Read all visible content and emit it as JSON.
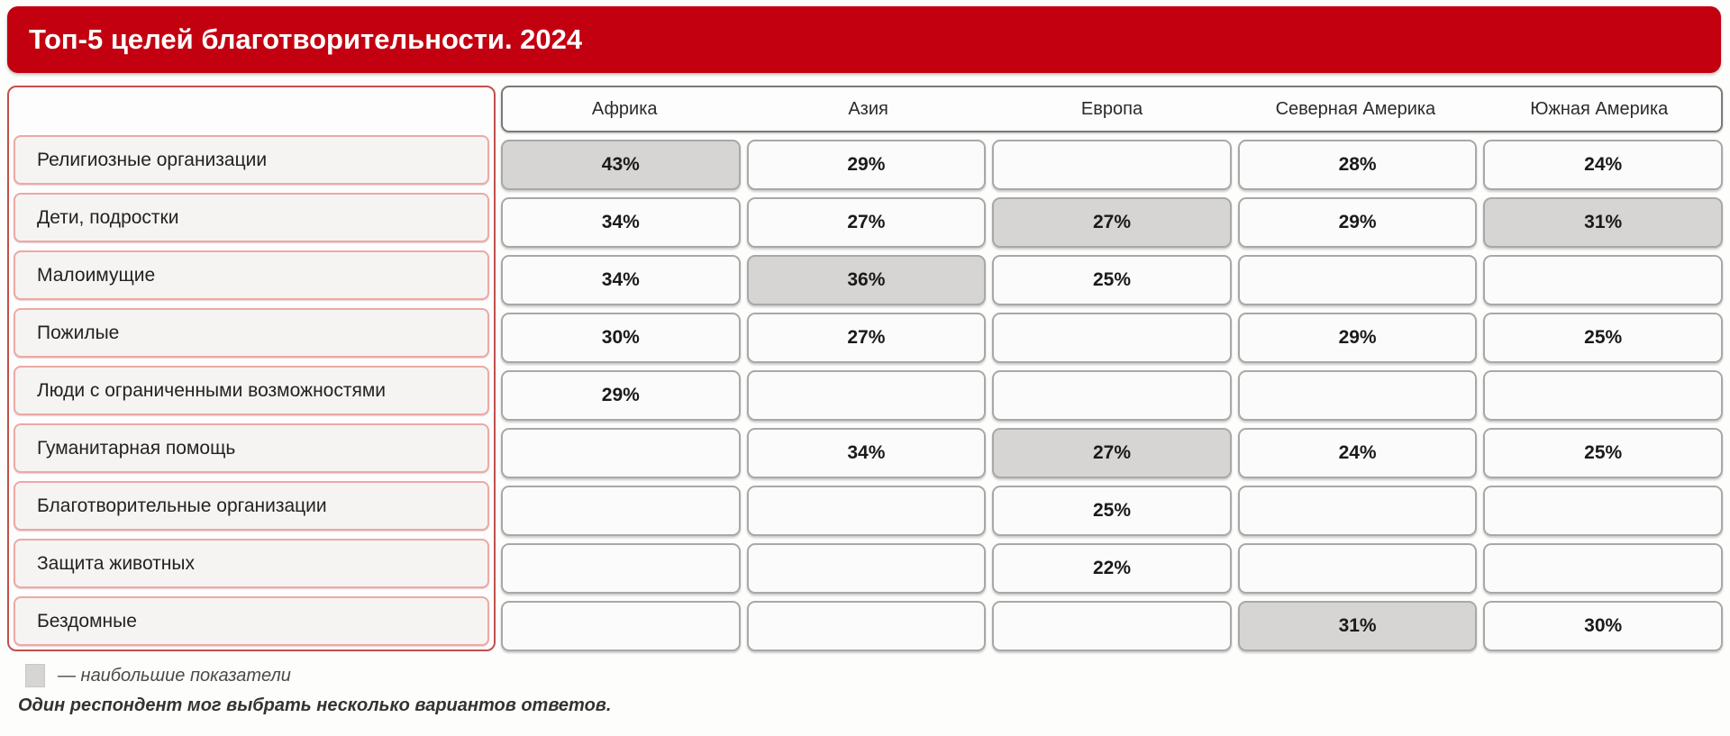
{
  "header": {
    "title": "Топ-5 целей благотворительности. 2024"
  },
  "table": {
    "columns": [
      "Африка",
      "Азия",
      "Европа",
      "Северная Америка",
      "Южная Америка"
    ],
    "rows": [
      {
        "label": "Религиозные организации",
        "values": [
          "43%",
          "29%",
          "",
          "28%",
          "24%"
        ],
        "highlights": [
          0
        ]
      },
      {
        "label": "Дети, подростки",
        "values": [
          "34%",
          "27%",
          "27%",
          "29%",
          "31%"
        ],
        "highlights": [
          2,
          4
        ]
      },
      {
        "label": "Малоимущие",
        "values": [
          "34%",
          "36%",
          "25%",
          "",
          ""
        ],
        "highlights": [
          1
        ]
      },
      {
        "label": "Пожилые",
        "values": [
          "30%",
          "27%",
          "",
          "29%",
          "25%"
        ],
        "highlights": []
      },
      {
        "label": "Люди с ограниченными возможностями",
        "values": [
          "29%",
          "",
          "",
          "",
          ""
        ],
        "highlights": []
      },
      {
        "label": "Гуманитарная помощь",
        "values": [
          "",
          "34%",
          "27%",
          "24%",
          "25%"
        ],
        "highlights": [
          2
        ]
      },
      {
        "label": "Благотворительные организации",
        "values": [
          "",
          "",
          "25%",
          "",
          ""
        ],
        "highlights": []
      },
      {
        "label": "Защита животных",
        "values": [
          "",
          "",
          "22%",
          "",
          ""
        ],
        "highlights": []
      },
      {
        "label": "Бездомные",
        "values": [
          "",
          "",
          "",
          "31%",
          "30%"
        ],
        "highlights": [
          3
        ]
      }
    ]
  },
  "legend": {
    "text": "— наибольшие показатели",
    "swatch_color": "#D6D5D3"
  },
  "footnote": {
    "text": "Один респондент мог выбрать несколько вариантов ответов."
  },
  "colors": {
    "banner_red": "#C30010",
    "left_border_red": "#C0504D",
    "label_border_pink": "#ECA9A4",
    "cell_border_gray": "#A8A8A8",
    "highlight_gray": "#D6D5D3"
  },
  "chart_data": {
    "type": "table",
    "title": "Топ-5 целей благотворительности. 2024",
    "columns": [
      "Африка",
      "Азия",
      "Европа",
      "Северная Америка",
      "Южная Америка"
    ],
    "rows": [
      "Религиозные организации",
      "Дети, подростки",
      "Малоимущие",
      "Пожилые",
      "Люди с ограниченными возможностями",
      "Гуманитарная помощь",
      "Благотворительные организации",
      "Защита животных",
      "Бездомные"
    ],
    "values_percent": [
      [
        43,
        29,
        null,
        28,
        24
      ],
      [
        34,
        27,
        27,
        29,
        31
      ],
      [
        34,
        36,
        25,
        null,
        null
      ],
      [
        30,
        27,
        null,
        29,
        25
      ],
      [
        29,
        null,
        null,
        null,
        null
      ],
      [
        null,
        34,
        27,
        24,
        25
      ],
      [
        null,
        null,
        25,
        null,
        null
      ],
      [
        null,
        null,
        22,
        null,
        null
      ],
      [
        null,
        null,
        null,
        31,
        30
      ]
    ],
    "highlighted_cells_row_col": [
      [
        0,
        0
      ],
      [
        1,
        2
      ],
      [
        1,
        4
      ],
      [
        2,
        1
      ],
      [
        5,
        2
      ],
      [
        8,
        3
      ]
    ],
    "legend": "— наибольшие показатели",
    "footnote": "Один респондент мог выбрать несколько вариантов ответов."
  }
}
